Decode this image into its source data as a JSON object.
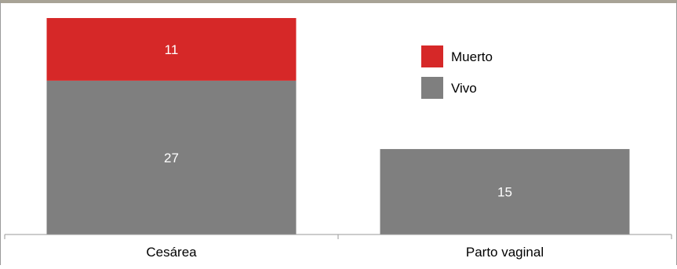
{
  "chart_data": {
    "type": "bar",
    "stacked": true,
    "categories": [
      "Cesárea",
      "Parto vaginal"
    ],
    "series": [
      {
        "name": "Vivo",
        "values": [
          27,
          15
        ],
        "color": "#7f7f7f"
      },
      {
        "name": "Muerto",
        "values": [
          11,
          0
        ],
        "color": "#d62828"
      }
    ],
    "ylim": [
      0,
      38
    ],
    "legend": {
      "placement": "top-right",
      "order": [
        "Muerto",
        "Vivo"
      ]
    },
    "grid": false,
    "title": "",
    "xlabel": "",
    "ylabel": ""
  }
}
